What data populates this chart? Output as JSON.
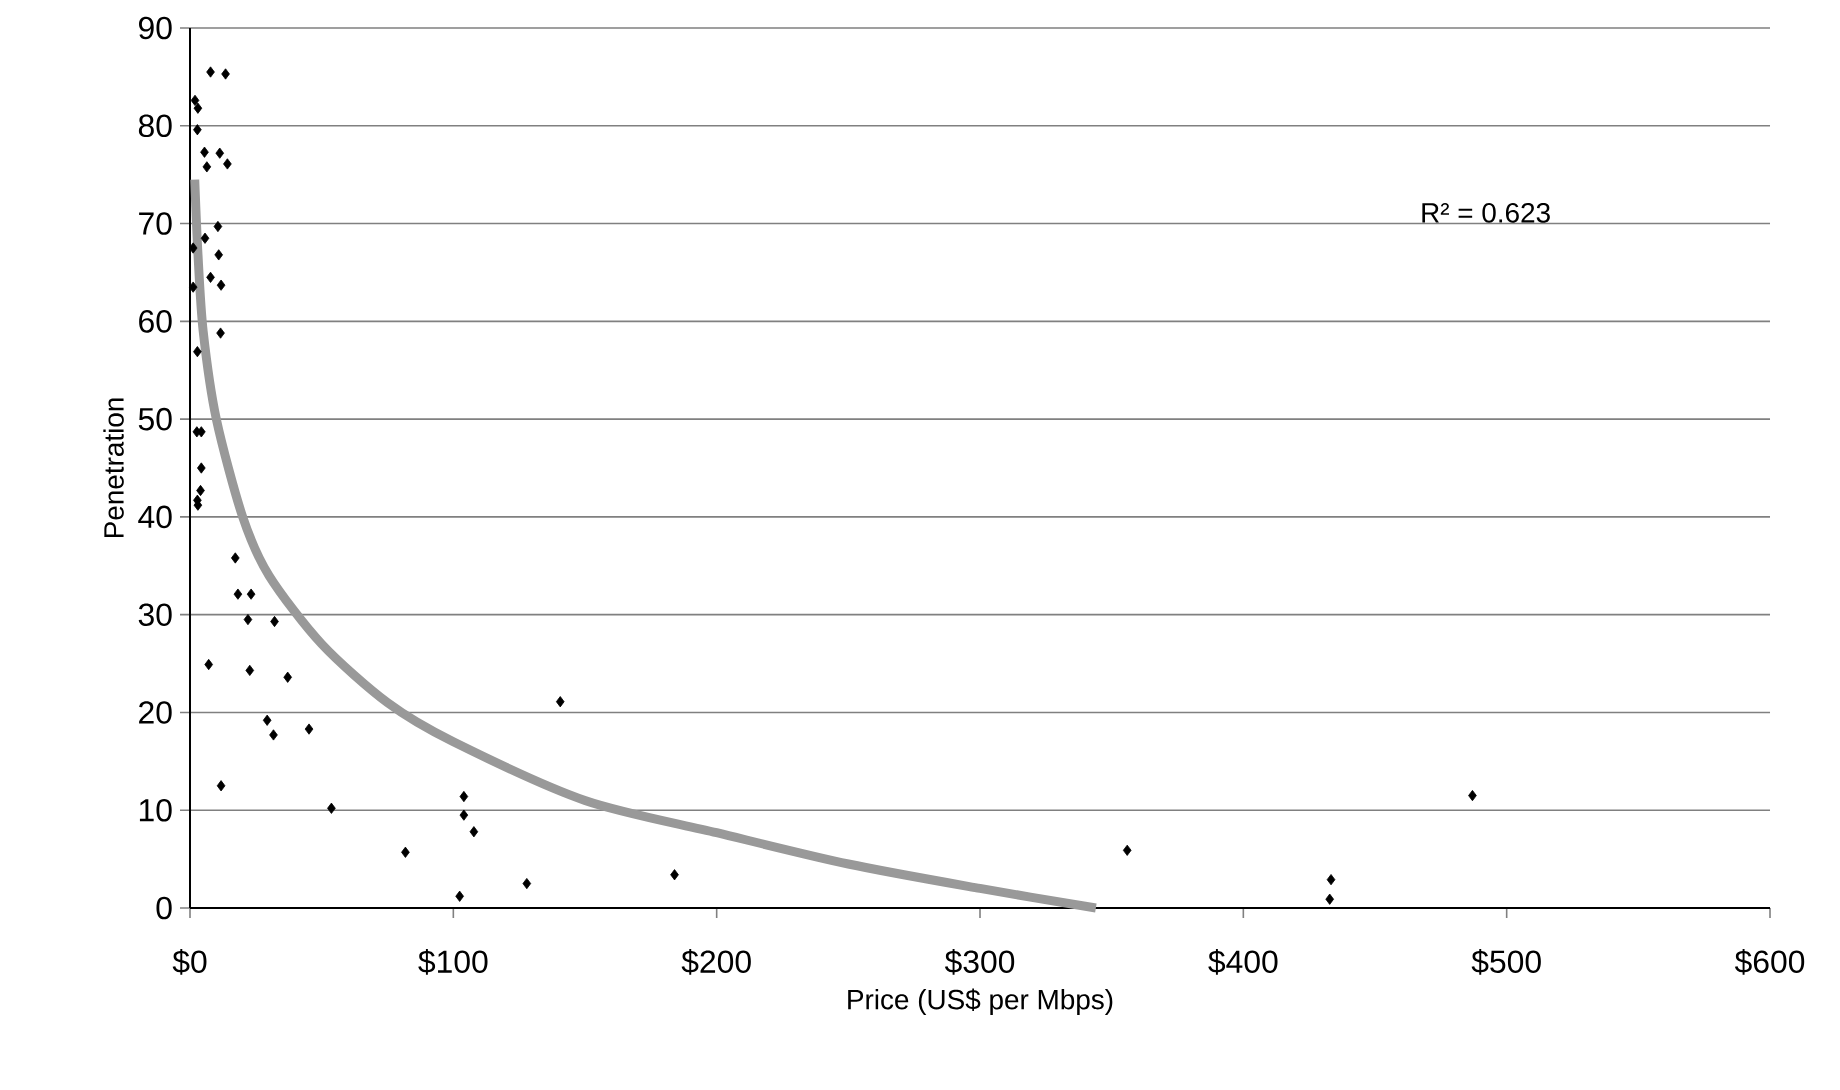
{
  "chart_data": {
    "type": "scatter",
    "xlabel": "Price (US$ per Mbps)",
    "ylabel": "Penetration",
    "xlim": [
      0,
      600
    ],
    "ylim": [
      0,
      90
    ],
    "xticks": [
      {
        "value": 0,
        "label": "$0"
      },
      {
        "value": 100,
        "label": "$100"
      },
      {
        "value": 200,
        "label": "$200"
      },
      {
        "value": 300,
        "label": "$300"
      },
      {
        "value": 400,
        "label": "$400"
      },
      {
        "value": 500,
        "label": "$500"
      },
      {
        "value": 600,
        "label": "$600"
      }
    ],
    "yticks": [
      0,
      10,
      20,
      30,
      40,
      50,
      60,
      70,
      80,
      90
    ],
    "grid": "y",
    "annotations": [
      "R² = 0.623"
    ],
    "series": [
      {
        "color": "#000000",
        "marker": "diamond",
        "x": [
          7.8,
          13.5,
          1.9,
          3.0,
          2.8,
          5.5,
          6.4,
          11.3,
          14.2,
          10.6,
          5.7,
          1.2,
          10.9,
          7.8,
          11.8,
          1.2,
          11.6,
          2.8,
          2.6,
          4.3,
          4.3,
          4.0,
          2.8,
          3.0,
          17.2,
          18.2,
          23.2,
          22.0,
          32.1,
          7.1,
          22.7,
          37.1,
          29.3,
          31.7,
          45.2,
          11.8,
          53.7,
          81.8,
          104.0,
          104.0,
          107.8,
          102.4,
          127.9,
          140.6,
          184.0,
          355.9,
          433.3,
          432.8,
          487.0
        ],
        "values": [
          85.5,
          85.3,
          82.6,
          81.8,
          79.6,
          77.3,
          75.8,
          77.2,
          76.1,
          69.7,
          68.5,
          67.5,
          66.8,
          64.5,
          63.7,
          63.5,
          58.8,
          56.9,
          48.7,
          48.7,
          45.0,
          42.7,
          41.7,
          41.2,
          35.8,
          32.1,
          32.1,
          29.5,
          29.3,
          24.9,
          24.3,
          23.6,
          19.2,
          17.7,
          18.3,
          12.5,
          10.2,
          5.7,
          11.4,
          9.5,
          7.8,
          1.2,
          2.5,
          21.1,
          3.4,
          5.9,
          2.9,
          0.9,
          11.5
        ]
      },
      {
        "type": "line",
        "color": "#999999",
        "marker": "none",
        "x": [
          1.8,
          3,
          5,
          10,
          20,
          30,
          50,
          75,
          100,
          150,
          200,
          250,
          300,
          344
        ],
        "values": [
          74.5,
          67,
          59,
          50,
          40,
          34,
          27,
          21,
          17,
          11,
          7.7,
          4.5,
          2,
          0
        ]
      }
    ]
  }
}
